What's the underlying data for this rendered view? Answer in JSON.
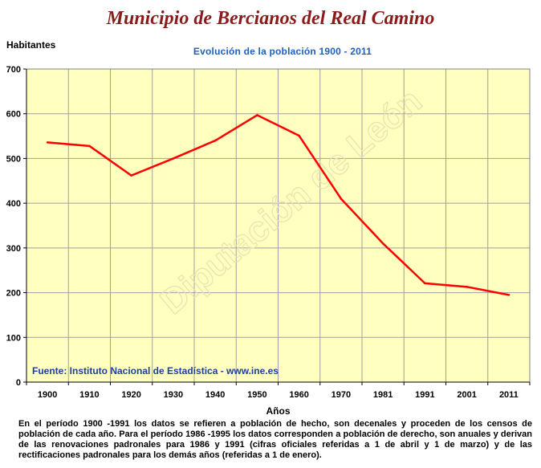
{
  "page": {
    "title": "Municipio de Bercianos del Real Camino",
    "footnote": "En el período 1900 -1991 los datos se refieren a población de hecho, son decenales y proceden de los censos de población de cada año. Para el período 1986 -1995 los datos corresponden a población de derecho, son anuales y derivan de las renovaciones padronales para 1986 y 1991 (cifras oficiales referidas a 1 de abril y 1 de marzo) y de las rectificaciones padronales para los demás años (referidas a 1 de enero)."
  },
  "chart_data": {
    "type": "line",
    "title": "Evolución de la población 1900 - 2011",
    "xlabel": "Años",
    "ylabel": "Habitantes",
    "categories": [
      "1900",
      "1910",
      "1920",
      "1930",
      "1940",
      "1950",
      "1960",
      "1970",
      "1981",
      "1991",
      "2001",
      "2011"
    ],
    "series": [
      {
        "values": [
          536,
          528,
          462,
          500,
          540,
          597,
          551,
          410,
          310,
          221,
          213,
          195
        ]
      }
    ],
    "ylim": [
      0,
      700
    ],
    "yticks": [
      0,
      100,
      200,
      300,
      400,
      500,
      600,
      700
    ],
    "grid": true,
    "source": "Fuente: Instituto Nacional de Estadística - www.ine.es",
    "watermark": "Diputación de León",
    "colors": {
      "plot_bg": "#ffffc0",
      "line": "#ff0000",
      "grid": "#a0a0a0",
      "title": "#8b1a1a",
      "subtitle": "#1f5fbf",
      "source": "#1f3f9f"
    }
  }
}
